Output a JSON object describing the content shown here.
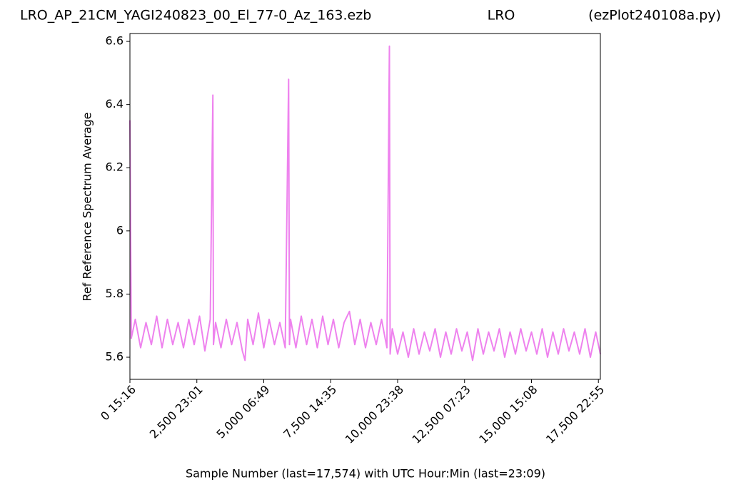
{
  "chart_data": {
    "type": "line",
    "title": "LRO_AP_21CM_YAGI240823_00_El_77-0_Az_163.ezb",
    "station": "LRO",
    "script": "(ezPlot240108a.py)",
    "xlabel": "Sample Number (last=17,574) with UTC Hour:Min (last=23:09)",
    "ylabel": "Ref Reference Spectrum Average",
    "xlim": [
      0,
      17574
    ],
    "ylim": [
      5.53,
      6.625
    ],
    "xticks": [
      {
        "value": 0,
        "label": "0  15:16"
      },
      {
        "value": 2500,
        "label": "2,500  23:01"
      },
      {
        "value": 5000,
        "label": "5,000  06:49"
      },
      {
        "value": 7500,
        "label": "7,500  14:35"
      },
      {
        "value": 10000,
        "label": "10,000  23:38"
      },
      {
        "value": 12500,
        "label": "12,500  07:23"
      },
      {
        "value": 15000,
        "label": "15,000  15:08"
      },
      {
        "value": 17500,
        "label": "17,500  22:55"
      }
    ],
    "yticks": [
      5.6,
      5.8,
      6.0,
      6.2,
      6.4,
      6.6
    ],
    "grid": false,
    "series": [
      {
        "color": "#ee82ee",
        "x": [
          0,
          50,
          200,
          400,
          600,
          800,
          1000,
          1200,
          1400,
          1600,
          1800,
          2000,
          2200,
          2400,
          2600,
          2800,
          3000,
          3098,
          3120,
          3200,
          3400,
          3600,
          3800,
          4000,
          4200,
          4300,
          4400,
          4600,
          4800,
          5000,
          5200,
          5400,
          5600,
          5800,
          5929,
          5960,
          6000,
          6200,
          6400,
          6600,
          6800,
          7000,
          7200,
          7400,
          7600,
          7800,
          8000,
          8200,
          8400,
          8600,
          8800,
          9000,
          9200,
          9400,
          9600,
          9695,
          9720,
          9800,
          10000,
          10200,
          10400,
          10600,
          10800,
          11000,
          11200,
          11400,
          11600,
          11800,
          12000,
          12200,
          12400,
          12600,
          12800,
          13000,
          13200,
          13400,
          13600,
          13800,
          14000,
          14200,
          14400,
          14600,
          14800,
          15000,
          15200,
          15400,
          15600,
          15800,
          16000,
          16200,
          16400,
          16600,
          16800,
          17000,
          17200,
          17400,
          17574
        ],
        "values": [
          6.35,
          5.66,
          5.72,
          5.63,
          5.71,
          5.64,
          5.73,
          5.63,
          5.72,
          5.64,
          5.71,
          5.63,
          5.72,
          5.64,
          5.73,
          5.62,
          5.72,
          6.43,
          5.64,
          5.71,
          5.63,
          5.72,
          5.64,
          5.71,
          5.62,
          5.59,
          5.72,
          5.64,
          5.74,
          5.63,
          5.72,
          5.64,
          5.71,
          5.63,
          6.48,
          5.64,
          5.72,
          5.63,
          5.73,
          5.64,
          5.72,
          5.63,
          5.73,
          5.64,
          5.72,
          5.63,
          5.71,
          5.745,
          5.64,
          5.72,
          5.63,
          5.71,
          5.64,
          5.72,
          5.63,
          6.585,
          5.61,
          5.69,
          5.61,
          5.68,
          5.6,
          5.69,
          5.61,
          5.68,
          5.62,
          5.69,
          5.6,
          5.68,
          5.61,
          5.69,
          5.62,
          5.68,
          5.59,
          5.69,
          5.61,
          5.68,
          5.62,
          5.69,
          5.6,
          5.68,
          5.61,
          5.69,
          5.62,
          5.68,
          5.61,
          5.69,
          5.6,
          5.68,
          5.61,
          5.69,
          5.62,
          5.68,
          5.61,
          5.69,
          5.6,
          5.68,
          5.61
        ]
      }
    ]
  }
}
